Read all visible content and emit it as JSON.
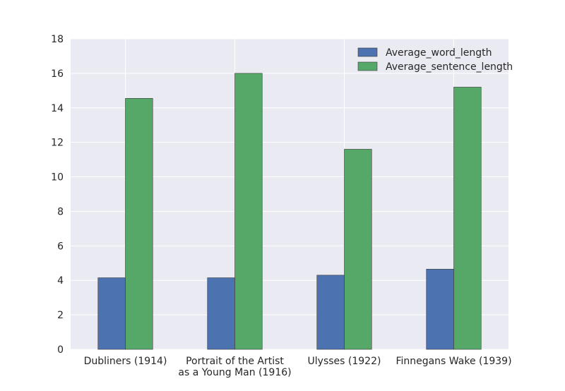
{
  "chart_data": {
    "type": "bar",
    "categories": [
      [
        "Dubliners (1914)"
      ],
      [
        "Portrait of the Artist",
        "as a Young Man (1916)"
      ],
      [
        "Ulysses (1922)"
      ],
      [
        "Finnegans Wake (1939)"
      ]
    ],
    "series": [
      {
        "name": "Average_word_length",
        "values": [
          4.15,
          4.15,
          4.3,
          4.65
        ],
        "color": "#4c72b0"
      },
      {
        "name": "Average_sentence_length",
        "values": [
          14.55,
          16.0,
          11.6,
          15.2
        ],
        "color": "#55a868"
      }
    ],
    "ylim": [
      0,
      18
    ],
    "yticks": [
      0,
      2,
      4,
      6,
      8,
      10,
      12,
      14,
      16,
      18
    ],
    "grid": true,
    "legend_position": "top-right",
    "colors": {
      "background": "#eaeaf2",
      "grid": "#ffffff",
      "text": "#262626"
    }
  }
}
